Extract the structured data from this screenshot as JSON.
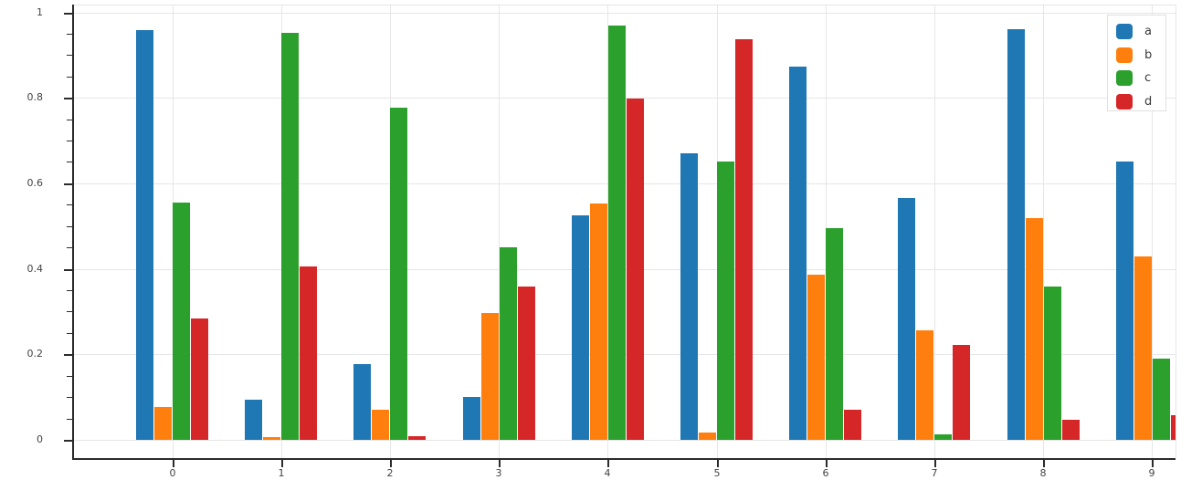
{
  "chart_data": {
    "type": "bar",
    "title": "",
    "xlabel": "",
    "ylabel": "",
    "categories": [
      "0",
      "1",
      "2",
      "3",
      "4",
      "5",
      "6",
      "7",
      "8",
      "9"
    ],
    "series": [
      {
        "name": "a",
        "color": "#1f77b4",
        "values": [
          0.958,
          0.093,
          0.177,
          0.1,
          0.525,
          0.671,
          0.874,
          0.566,
          0.96,
          0.65
        ]
      },
      {
        "name": "b",
        "color": "#ff7f0e",
        "values": [
          0.077,
          0.006,
          0.07,
          0.297,
          0.552,
          0.018,
          0.387,
          0.257,
          0.518,
          0.43
        ]
      },
      {
        "name": "c",
        "color": "#2ca02c",
        "values": [
          0.556,
          0.952,
          0.776,
          0.45,
          0.97,
          0.652,
          0.495,
          0.013,
          0.359,
          0.19
        ]
      },
      {
        "name": "d",
        "color": "#d62728",
        "values": [
          0.284,
          0.406,
          0.009,
          0.358,
          0.799,
          0.938,
          0.07,
          0.221,
          0.048,
          0.058
        ]
      }
    ],
    "ylim": [
      0,
      1
    ],
    "yticks": [
      0,
      0.2,
      0.4,
      0.6,
      0.8,
      1
    ],
    "ytick_labels": [
      "0",
      "0.2",
      "0.4",
      "0.6",
      "0.8",
      "1"
    ],
    "minor_tick_step": 0.05,
    "grid": true,
    "legend_position": "top-right",
    "legend_entries": [
      "a",
      "b",
      "c",
      "d"
    ],
    "style": {
      "background": "#ffffff",
      "grid_color": "#e6e6e6",
      "frame_color": "#e6e6e6",
      "axis_line_color": "#2b2b2b",
      "tick_label_color": "#444444",
      "legend_border_color": "#e0e0e0",
      "legend_text_color": "#3a3a3a"
    }
  }
}
